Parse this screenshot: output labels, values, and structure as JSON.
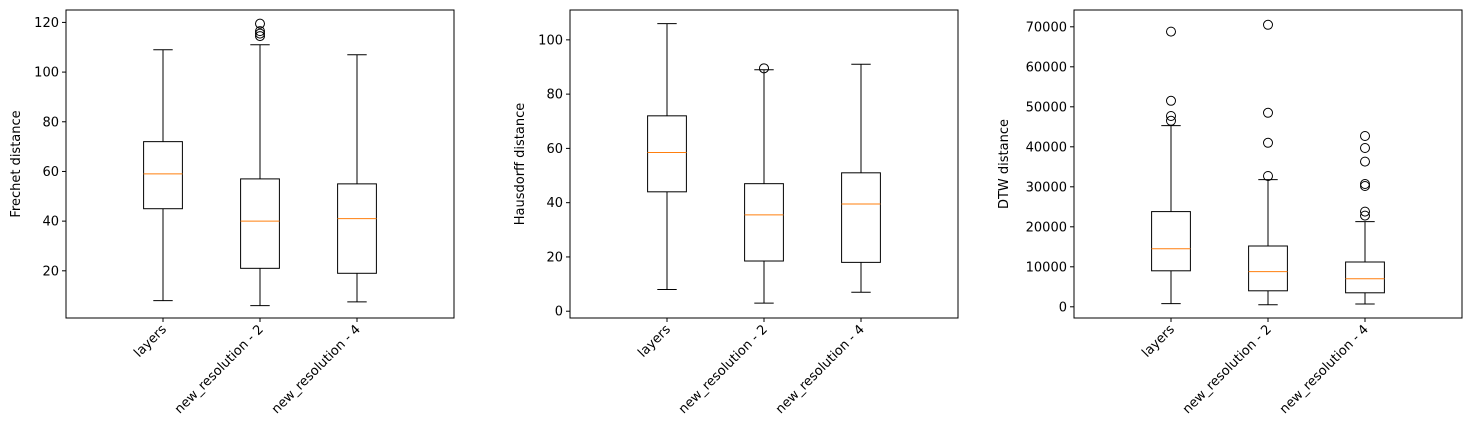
{
  "chart_data": [
    {
      "type": "box",
      "ylabel": "Frechet distance",
      "categories": [
        "layers",
        "new_resolution - 2",
        "new_resolution - 4"
      ],
      "ylim": [
        1,
        125
      ],
      "yticks": [
        20,
        40,
        60,
        80,
        100,
        120
      ],
      "grid": false,
      "boxes": [
        {
          "whislo": 8,
          "q1": 45,
          "med": 59,
          "q3": 72,
          "whishi": 109,
          "fliers": []
        },
        {
          "whislo": 6,
          "q1": 21,
          "med": 40,
          "q3": 57,
          "whishi": 111,
          "fliers": [
            114.5,
            115.5,
            116.5,
            119.5
          ]
        },
        {
          "whislo": 7.5,
          "q1": 19,
          "med": 41,
          "q3": 55,
          "whishi": 107,
          "fliers": []
        }
      ]
    },
    {
      "type": "box",
      "ylabel": "Hausdorff distance",
      "categories": [
        "layers",
        "new_resolution - 2",
        "new_resolution - 4"
      ],
      "ylim": [
        -2.5,
        111
      ],
      "yticks": [
        0,
        20,
        40,
        60,
        80,
        100
      ],
      "grid": false,
      "boxes": [
        {
          "whislo": 8,
          "q1": 44,
          "med": 58.5,
          "q3": 72,
          "whishi": 106,
          "fliers": []
        },
        {
          "whislo": 3,
          "q1": 18.5,
          "med": 35.5,
          "q3": 47,
          "whishi": 89,
          "fliers": [
            89.5
          ]
        },
        {
          "whislo": 7,
          "q1": 18,
          "med": 39.5,
          "q3": 51,
          "whishi": 91,
          "fliers": []
        }
      ]
    },
    {
      "type": "box",
      "ylabel": "DTW distance",
      "categories": [
        "layers",
        "new_resolution - 2",
        "new_resolution - 4"
      ],
      "ylim": [
        -2800,
        74200
      ],
      "yticks": [
        0,
        10000,
        20000,
        30000,
        40000,
        50000,
        60000,
        70000
      ],
      "grid": false,
      "boxes": [
        {
          "whislo": 800,
          "q1": 9000,
          "med": 14500,
          "q3": 23800,
          "whishi": 45300,
          "fliers": [
            46500,
            47700,
            51500,
            68800
          ]
        },
        {
          "whislo": 500,
          "q1": 4000,
          "med": 8800,
          "q3": 15200,
          "whishi": 31800,
          "fliers": [
            32700,
            41000,
            48500,
            70500
          ]
        },
        {
          "whislo": 700,
          "q1": 3500,
          "med": 7000,
          "q3": 11200,
          "whishi": 21300,
          "fliers": [
            22800,
            23800,
            30200,
            30700,
            36300,
            39700,
            42700
          ]
        }
      ]
    }
  ],
  "colors": {
    "median": "#ff7f0e",
    "box": "#000000",
    "background": "#ffffff"
  }
}
